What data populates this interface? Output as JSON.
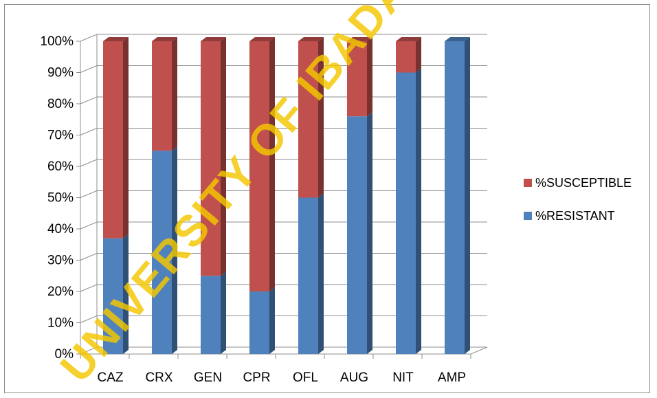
{
  "chart_data": {
    "type": "bar",
    "stacked": true,
    "normalized_percent": true,
    "three_d": true,
    "categories": [
      "CAZ",
      "CRX",
      "GEN",
      "CPR",
      "OFL",
      "AUG",
      "NIT",
      "AMP"
    ],
    "series": [
      {
        "name": "%RESISTANT",
        "color": "#4f81bd",
        "values": [
          37,
          65,
          25,
          20,
          50,
          76,
          90,
          100
        ]
      },
      {
        "name": "%SUSCEPTIBLE",
        "color": "#c0504d",
        "values": [
          63,
          35,
          75,
          80,
          50,
          24,
          10,
          0
        ]
      }
    ],
    "y_ticks": [
      "0%",
      "10%",
      "20%",
      "30%",
      "40%",
      "50%",
      "60%",
      "70%",
      "80%",
      "90%",
      "100%"
    ],
    "ylim": [
      0,
      100
    ],
    "grid": true,
    "legend": {
      "position": "right",
      "order": [
        "%SUSCEPTIBLE",
        "%RESISTANT"
      ]
    },
    "title": "",
    "xlabel": "",
    "ylabel": ""
  },
  "watermark": {
    "text": "UNIVERSITY OF IBADAN",
    "color": "#f5c800"
  }
}
